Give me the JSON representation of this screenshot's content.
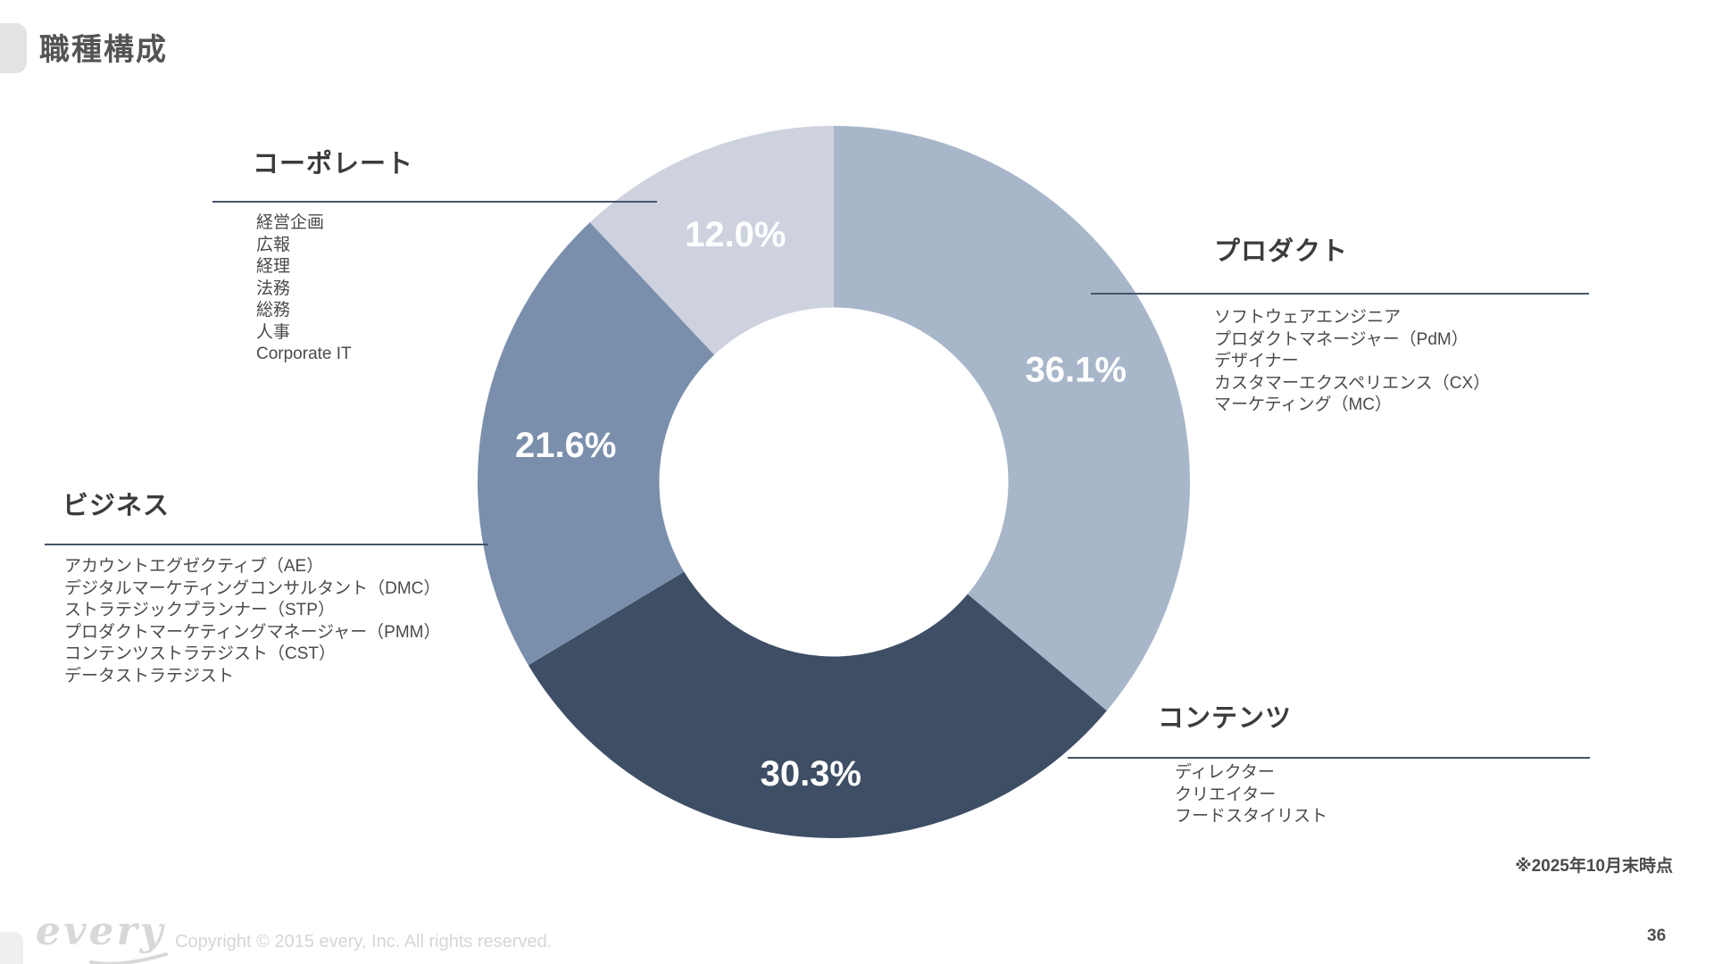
{
  "slide": {
    "title": "職種構成",
    "note": "※2025年10月末時点",
    "page_number": "36",
    "footer": {
      "logo_text": "every",
      "copyright": "Copyright © 2015 every, Inc. All rights reserved."
    }
  },
  "chart_data": {
    "type": "pie",
    "title": "職種構成",
    "donut": true,
    "unit": "%",
    "start_angle_deg": 0,
    "direction": "clockwise",
    "inner_radius_ratio": 0.49,
    "label_color": "#ffffff",
    "label_radius_factors": [
      0.75,
      0.82,
      0.76,
      0.75
    ],
    "legend_position": "callouts-around-chart",
    "slices": [
      {
        "label": "プロダクト",
        "value": 36.1,
        "display": "36.1%",
        "color": "#a8b6c9"
      },
      {
        "label": "コンテンツ",
        "value": 30.3,
        "display": "30.3%",
        "color": "#3e4e65"
      },
      {
        "label": "ビジネス",
        "value": 21.6,
        "display": "21.6%",
        "color": "#7a8fac"
      },
      {
        "label": "コーポレート",
        "value": 12.0,
        "display": "12.0%",
        "color": "#ced2df"
      }
    ]
  },
  "categories": {
    "corporate": {
      "heading": "コーポレート",
      "items": [
        "経営企画",
        "広報",
        "経理",
        "法務",
        "総務",
        "人事",
        "Corporate IT"
      ]
    },
    "product": {
      "heading": "プロダクト",
      "items": [
        "ソフトウェアエンジニア",
        "プロダクトマネージャー（PdM）",
        "デザイナー",
        "カスタマーエクスペリエンス（CX）",
        "マーケティング（MC）"
      ]
    },
    "business": {
      "heading": "ビジネス",
      "items": [
        "アカウントエグゼクティブ（AE）",
        "デジタルマーケティングコンサルタント（DMC）",
        "ストラテジックプランナー（STP）",
        "プロダクトマーケティングマネージャー（PMM）",
        "コンテンツストラテジスト（CST）",
        "データストラテジスト"
      ]
    },
    "content": {
      "heading": "コンテンツ",
      "items": [
        "ディレクター",
        "クリエイター",
        "フードスタイリスト"
      ]
    }
  }
}
